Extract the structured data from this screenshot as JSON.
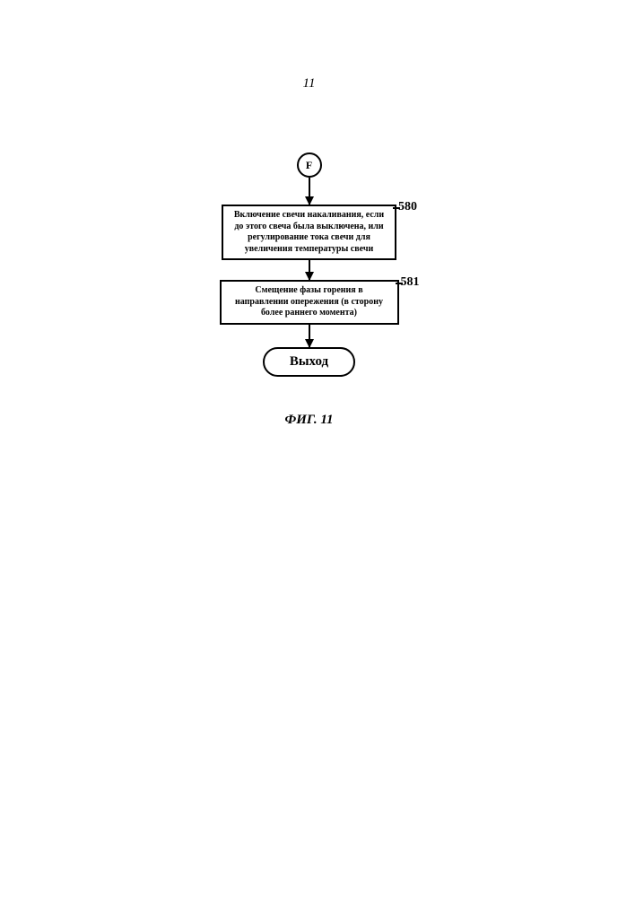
{
  "page_number": "11",
  "flowchart": {
    "connector": {
      "label": "F"
    },
    "steps": [
      {
        "id": "580",
        "text": "Включение свечи накаливания, если до этого свеча была выключена, или регулирование тока свечи для увеличения температуры свечи"
      },
      {
        "id": "581",
        "text": "Смещение фазы горения в направлении опережения (в сторону более раннего момента)"
      }
    ],
    "terminator": "Выход"
  },
  "caption": "ФИГ. 11",
  "colors": {
    "background": "#ffffff",
    "stroke": "#000000",
    "text": "#000000"
  }
}
